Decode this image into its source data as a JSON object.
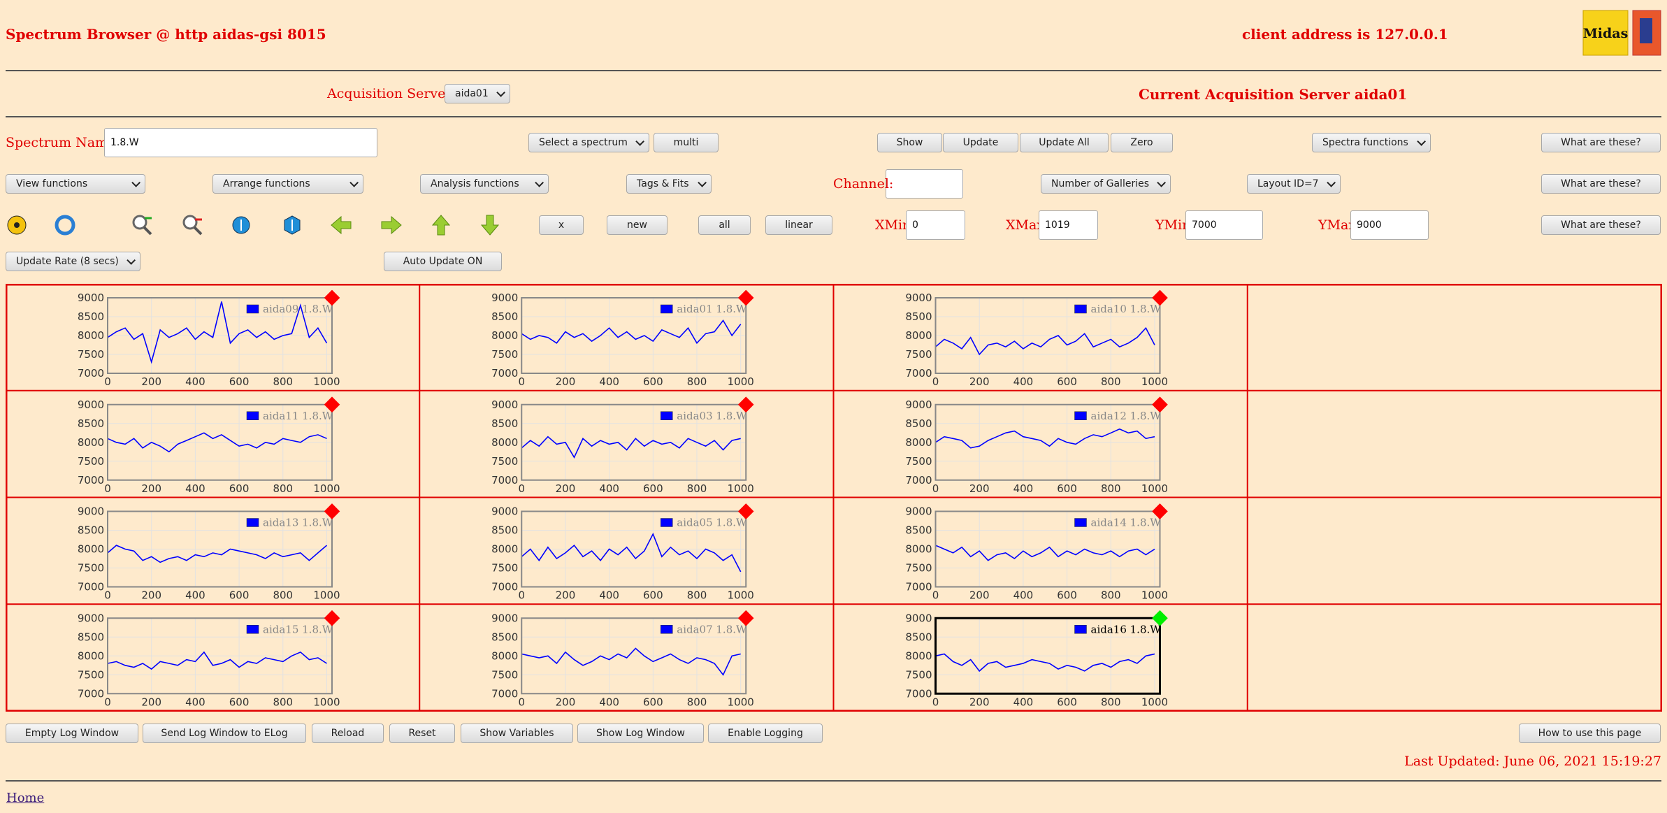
{
  "header": {
    "title": "Spectrum Browser @ http aidas-gsi 8015",
    "client_address": "client address is 127.0.0.1",
    "logo_text": "Midas"
  },
  "acquisition": {
    "label": "Acquisition Servers",
    "current": "Current Acquisition Server aida01"
  },
  "labels": [
    "Acquisition Servers",
    "Spectrum Name:",
    "Channel:",
    "XMin",
    "XMax",
    "YMin",
    "YMax"
  ],
  "dropdowns": [
    "aida01",
    "Select a spectrum",
    "Spectra functions",
    "View functions",
    "Arrange functions",
    "Analysis functions",
    "Tags & Fits",
    "Number of Galleries",
    "Layout ID=7",
    "Update Rate (8 secs)"
  ],
  "buttons": [
    "multi",
    "Show",
    "Update",
    "Update All",
    "Zero",
    "What are these?",
    "What are these?",
    "What are these?",
    "x",
    "new",
    "all",
    "linear",
    "Auto Update ON",
    "Empty Log Window",
    "Send Log Window to ELog",
    "Reload",
    "Reset",
    "Show Variables",
    "Show Log Window",
    "Enable Logging",
    "How to use this page"
  ],
  "inputs": [
    "1.8.W",
    "0",
    "1019",
    "7000",
    "9000"
  ],
  "footer": {
    "last_updated": "Last Updated: June 06, 2021 15:19:27",
    "home": "Home"
  },
  "chart_data": [
    {
      "type": "line",
      "x": [
        0,
        40,
        80,
        120,
        160,
        200,
        240,
        280,
        320,
        360,
        400,
        440,
        480,
        520,
        560,
        600,
        640,
        680,
        720,
        760,
        800,
        840,
        880,
        920,
        960,
        1000
      ],
      "series": [
        {
          "name": "aida09 1.8.W",
          "color": "#0000ff",
          "values": [
            7950,
            8100,
            8200,
            7900,
            8050,
            7300,
            8150,
            7950,
            8050,
            8200,
            7900,
            8100,
            7950,
            8900,
            7800,
            8050,
            8150,
            7950,
            8100,
            7900,
            8000,
            8050,
            8800,
            7950,
            8200,
            7800
          ]
        }
      ],
      "xlim": [
        0,
        1024
      ],
      "ylim": [
        7000,
        9000
      ],
      "xticks": [
        0,
        200,
        400,
        600,
        800,
        1000
      ],
      "yticks": [
        7000,
        7500,
        8000,
        8500,
        9000
      ],
      "grid": true,
      "status_color": "#ff0000",
      "frame_color": "#888888",
      "legend_text_color": "#888888"
    },
    {
      "type": "line",
      "x": [
        0,
        40,
        80,
        120,
        160,
        200,
        240,
        280,
        320,
        360,
        400,
        440,
        480,
        520,
        560,
        600,
        640,
        680,
        720,
        760,
        800,
        840,
        880,
        920,
        960,
        1000
      ],
      "series": [
        {
          "name": "aida01 1.8.W",
          "color": "#0000ff",
          "values": [
            8050,
            7900,
            8000,
            7950,
            7800,
            8100,
            7950,
            8050,
            7850,
            8000,
            8200,
            7950,
            8100,
            7900,
            8000,
            7850,
            8150,
            8050,
            7950,
            8200,
            7800,
            8050,
            8100,
            8400,
            8000,
            8300
          ]
        }
      ],
      "xlim": [
        0,
        1024
      ],
      "ylim": [
        7000,
        9000
      ],
      "xticks": [
        0,
        200,
        400,
        600,
        800,
        1000
      ],
      "yticks": [
        7000,
        7500,
        8000,
        8500,
        9000
      ],
      "grid": true,
      "status_color": "#ff0000",
      "frame_color": "#888888",
      "legend_text_color": "#888888"
    },
    {
      "type": "line",
      "x": [
        0,
        40,
        80,
        120,
        160,
        200,
        240,
        280,
        320,
        360,
        400,
        440,
        480,
        520,
        560,
        600,
        640,
        680,
        720,
        760,
        800,
        840,
        880,
        920,
        960,
        1000
      ],
      "series": [
        {
          "name": "aida10 1.8.W",
          "color": "#0000ff",
          "values": [
            7700,
            7900,
            7800,
            7650,
            7950,
            7500,
            7750,
            7800,
            7700,
            7850,
            7650,
            7800,
            7700,
            7900,
            8000,
            7750,
            7850,
            8050,
            7700,
            7800,
            7900,
            7700,
            7800,
            7950,
            8200,
            7750
          ]
        }
      ],
      "xlim": [
        0,
        1024
      ],
      "ylim": [
        7000,
        9000
      ],
      "xticks": [
        0,
        200,
        400,
        600,
        800,
        1000
      ],
      "yticks": [
        7000,
        7500,
        8000,
        8500,
        9000
      ],
      "grid": true,
      "status_color": "#ff0000",
      "frame_color": "#888888",
      "legend_text_color": "#888888"
    },
    {
      "type": "line",
      "x": [
        0,
        40,
        80,
        120,
        160,
        200,
        240,
        280,
        320,
        360,
        400,
        440,
        480,
        520,
        560,
        600,
        640,
        680,
        720,
        760,
        800,
        840,
        880,
        920,
        960,
        1000
      ],
      "series": [
        {
          "name": "aida11 1.8.W",
          "color": "#0000ff",
          "values": [
            8100,
            8000,
            7950,
            8100,
            7850,
            8000,
            7900,
            7750,
            7950,
            8050,
            8150,
            8250,
            8100,
            8200,
            8050,
            7900,
            7950,
            7850,
            8000,
            7950,
            8100,
            8050,
            8000,
            8150,
            8200,
            8100
          ]
        }
      ],
      "xlim": [
        0,
        1024
      ],
      "ylim": [
        7000,
        9000
      ],
      "xticks": [
        0,
        200,
        400,
        600,
        800,
        1000
      ],
      "yticks": [
        7000,
        7500,
        8000,
        8500,
        9000
      ],
      "grid": true,
      "status_color": "#ff0000",
      "frame_color": "#888888",
      "legend_text_color": "#888888"
    },
    {
      "type": "line",
      "x": [
        0,
        40,
        80,
        120,
        160,
        200,
        240,
        280,
        320,
        360,
        400,
        440,
        480,
        520,
        560,
        600,
        640,
        680,
        720,
        760,
        800,
        840,
        880,
        920,
        960,
        1000
      ],
      "series": [
        {
          "name": "aida03 1.8.W",
          "color": "#0000ff",
          "values": [
            7850,
            8050,
            7900,
            8150,
            7950,
            8000,
            7600,
            8100,
            7900,
            8050,
            7950,
            8000,
            7800,
            8100,
            7900,
            8050,
            7950,
            8000,
            7850,
            8100,
            8000,
            7900,
            8050,
            7800,
            8050,
            8100
          ]
        }
      ],
      "xlim": [
        0,
        1024
      ],
      "ylim": [
        7000,
        9000
      ],
      "xticks": [
        0,
        200,
        400,
        600,
        800,
        1000
      ],
      "yticks": [
        7000,
        7500,
        8000,
        8500,
        9000
      ],
      "grid": true,
      "status_color": "#ff0000",
      "frame_color": "#888888",
      "legend_text_color": "#888888"
    },
    {
      "type": "line",
      "x": [
        0,
        40,
        80,
        120,
        160,
        200,
        240,
        280,
        320,
        360,
        400,
        440,
        480,
        520,
        560,
        600,
        640,
        680,
        720,
        760,
        800,
        840,
        880,
        920,
        960,
        1000
      ],
      "series": [
        {
          "name": "aida12 1.8.W",
          "color": "#0000ff",
          "values": [
            8000,
            8150,
            8100,
            8050,
            7850,
            7900,
            8050,
            8150,
            8250,
            8300,
            8150,
            8100,
            8050,
            7900,
            8100,
            8000,
            7950,
            8100,
            8200,
            8150,
            8250,
            8350,
            8250,
            8300,
            8100,
            8150
          ]
        }
      ],
      "xlim": [
        0,
        1024
      ],
      "ylim": [
        7000,
        9000
      ],
      "xticks": [
        0,
        200,
        400,
        600,
        800,
        1000
      ],
      "yticks": [
        7000,
        7500,
        8000,
        8500,
        9000
      ],
      "grid": true,
      "status_color": "#ff0000",
      "frame_color": "#888888",
      "legend_text_color": "#888888"
    },
    {
      "type": "line",
      "x": [
        0,
        40,
        80,
        120,
        160,
        200,
        240,
        280,
        320,
        360,
        400,
        440,
        480,
        520,
        560,
        600,
        640,
        680,
        720,
        760,
        800,
        840,
        880,
        920,
        960,
        1000
      ],
      "series": [
        {
          "name": "aida13 1.8.W",
          "color": "#0000ff",
          "values": [
            7900,
            8100,
            8000,
            7950,
            7700,
            7800,
            7650,
            7750,
            7800,
            7700,
            7850,
            7800,
            7900,
            7850,
            8000,
            7950,
            7900,
            7850,
            7750,
            7900,
            7800,
            7850,
            7900,
            7700,
            7900,
            8100
          ]
        }
      ],
      "xlim": [
        0,
        1024
      ],
      "ylim": [
        7000,
        9000
      ],
      "xticks": [
        0,
        200,
        400,
        600,
        800,
        1000
      ],
      "yticks": [
        7000,
        7500,
        8000,
        8500,
        9000
      ],
      "grid": true,
      "status_color": "#ff0000",
      "frame_color": "#888888",
      "legend_text_color": "#888888"
    },
    {
      "type": "line",
      "x": [
        0,
        40,
        80,
        120,
        160,
        200,
        240,
        280,
        320,
        360,
        400,
        440,
        480,
        520,
        560,
        600,
        640,
        680,
        720,
        760,
        800,
        840,
        880,
        920,
        960,
        1000
      ],
      "series": [
        {
          "name": "aida05 1.8.W",
          "color": "#0000ff",
          "values": [
            7800,
            8000,
            7700,
            8050,
            7750,
            7900,
            8100,
            7800,
            7950,
            7700,
            8000,
            7850,
            8050,
            7750,
            7950,
            8400,
            7800,
            8050,
            7850,
            7950,
            7750,
            8000,
            7900,
            7700,
            7850,
            7400
          ]
        }
      ],
      "xlim": [
        0,
        1024
      ],
      "ylim": [
        7000,
        9000
      ],
      "xticks": [
        0,
        200,
        400,
        600,
        800,
        1000
      ],
      "yticks": [
        7000,
        7500,
        8000,
        8500,
        9000
      ],
      "grid": true,
      "status_color": "#ff0000",
      "frame_color": "#888888",
      "legend_text_color": "#888888"
    },
    {
      "type": "line",
      "x": [
        0,
        40,
        80,
        120,
        160,
        200,
        240,
        280,
        320,
        360,
        400,
        440,
        480,
        520,
        560,
        600,
        640,
        680,
        720,
        760,
        800,
        840,
        880,
        920,
        960,
        1000
      ],
      "series": [
        {
          "name": "aida14 1.8.W",
          "color": "#0000ff",
          "values": [
            8100,
            8000,
            7900,
            8050,
            7800,
            7950,
            7700,
            7850,
            7900,
            7750,
            7950,
            7800,
            7900,
            8050,
            7800,
            7950,
            7850,
            8000,
            7900,
            7850,
            7950,
            7800,
            7950,
            8000,
            7850,
            8000
          ]
        }
      ],
      "xlim": [
        0,
        1024
      ],
      "ylim": [
        7000,
        9000
      ],
      "xticks": [
        0,
        200,
        400,
        600,
        800,
        1000
      ],
      "yticks": [
        7000,
        7500,
        8000,
        8500,
        9000
      ],
      "grid": true,
      "status_color": "#ff0000",
      "frame_color": "#888888",
      "legend_text_color": "#888888"
    },
    {
      "type": "line",
      "x": [
        0,
        40,
        80,
        120,
        160,
        200,
        240,
        280,
        320,
        360,
        400,
        440,
        480,
        520,
        560,
        600,
        640,
        680,
        720,
        760,
        800,
        840,
        880,
        920,
        960,
        1000
      ],
      "series": [
        {
          "name": "aida15 1.8.W",
          "color": "#0000ff",
          "values": [
            7800,
            7850,
            7750,
            7700,
            7800,
            7650,
            7850,
            7800,
            7750,
            7900,
            7850,
            8100,
            7750,
            7800,
            7900,
            7700,
            7850,
            7800,
            7950,
            7900,
            7850,
            8000,
            8100,
            7900,
            7950,
            7800
          ]
        }
      ],
      "xlim": [
        0,
        1024
      ],
      "ylim": [
        7000,
        9000
      ],
      "xticks": [
        0,
        200,
        400,
        600,
        800,
        1000
      ],
      "yticks": [
        7000,
        7500,
        8000,
        8500,
        9000
      ],
      "grid": true,
      "status_color": "#ff0000",
      "frame_color": "#888888",
      "legend_text_color": "#888888"
    },
    {
      "type": "line",
      "x": [
        0,
        40,
        80,
        120,
        160,
        200,
        240,
        280,
        320,
        360,
        400,
        440,
        480,
        520,
        560,
        600,
        640,
        680,
        720,
        760,
        800,
        840,
        880,
        920,
        960,
        1000
      ],
      "series": [
        {
          "name": "aida07 1.8.W",
          "color": "#0000ff",
          "values": [
            8050,
            8000,
            7950,
            8000,
            7800,
            8100,
            7900,
            7750,
            7850,
            8000,
            7900,
            8050,
            7950,
            8200,
            8000,
            7850,
            7950,
            8050,
            7900,
            7800,
            7950,
            7900,
            7800,
            7500,
            8000,
            8050
          ]
        }
      ],
      "xlim": [
        0,
        1024
      ],
      "ylim": [
        7000,
        9000
      ],
      "xticks": [
        0,
        200,
        400,
        600,
        800,
        1000
      ],
      "yticks": [
        7000,
        7500,
        8000,
        8500,
        9000
      ],
      "grid": true,
      "status_color": "#ff0000",
      "frame_color": "#888888",
      "legend_text_color": "#888888"
    },
    {
      "type": "line",
      "x": [
        0,
        40,
        80,
        120,
        160,
        200,
        240,
        280,
        320,
        360,
        400,
        440,
        480,
        520,
        560,
        600,
        640,
        680,
        720,
        760,
        800,
        840,
        880,
        920,
        960,
        1000
      ],
      "series": [
        {
          "name": "aida16 1.8.W",
          "color": "#0000ff",
          "values": [
            8000,
            8050,
            7850,
            7750,
            7900,
            7600,
            7800,
            7850,
            7700,
            7750,
            7800,
            7900,
            7850,
            7800,
            7650,
            7750,
            7700,
            7600,
            7750,
            7800,
            7700,
            7850,
            7900,
            7800,
            8000,
            8050
          ]
        }
      ],
      "xlim": [
        0,
        1024
      ],
      "ylim": [
        7000,
        9000
      ],
      "xticks": [
        0,
        200,
        400,
        600,
        800,
        1000
      ],
      "yticks": [
        7000,
        7500,
        8000,
        8500,
        9000
      ],
      "grid": true,
      "status_color": "#00ee00",
      "frame_color": "#000000",
      "legend_text_color": "#000000"
    }
  ]
}
